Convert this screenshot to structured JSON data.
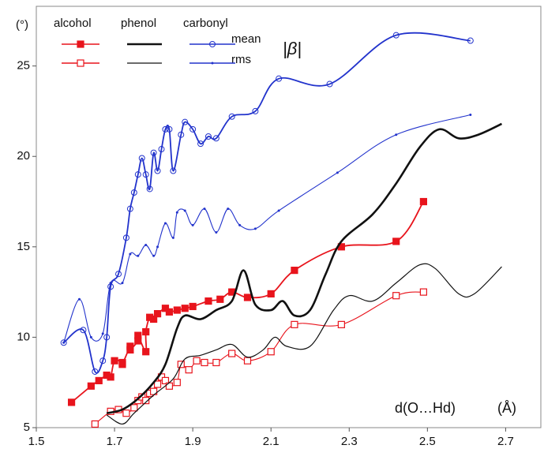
{
  "chart_data": {
    "type": "line",
    "y_label": "(°)",
    "x_label": "d(O…Hd)",
    "x_unit": "(Å)",
    "xlim": [
      1.5,
      2.79
    ],
    "ylim": [
      5,
      28.3
    ],
    "xticks": [
      1.5,
      1.7,
      1.9,
      2.1,
      2.3,
      2.5,
      2.7
    ],
    "yticks": [
      5,
      10,
      15,
      20,
      25
    ],
    "stats": [
      "mean",
      "rms"
    ],
    "stat_symbol": "|β|",
    "series": [
      {
        "name": "alcohol",
        "color": "#e8141c",
        "marker": "square",
        "mean": {
          "x": [
            1.59,
            1.64,
            1.66,
            1.68,
            1.69,
            1.7,
            1.72,
            1.72,
            1.74,
            1.74,
            1.76,
            1.76,
            1.78,
            1.78,
            1.79,
            1.8,
            1.81,
            1.83,
            1.84,
            1.86,
            1.88,
            1.9,
            1.94,
            1.97,
            2.0,
            2.04,
            2.1,
            2.16,
            2.28,
            2.42,
            2.49
          ],
          "values": [
            6.4,
            7.3,
            7.6,
            7.9,
            7.8,
            8.7,
            8.6,
            8.5,
            9.5,
            9.3,
            9.8,
            10.1,
            9.2,
            10.3,
            11.1,
            11.0,
            11.3,
            11.6,
            11.4,
            11.5,
            11.6,
            11.7,
            12.0,
            12.1,
            12.5,
            12.2,
            12.4,
            13.7,
            15.0,
            15.3,
            17.5
          ]
        },
        "rms": {
          "x": [
            1.65,
            1.69,
            1.71,
            1.73,
            1.75,
            1.76,
            1.77,
            1.78,
            1.79,
            1.8,
            1.81,
            1.82,
            1.83,
            1.84,
            1.86,
            1.87,
            1.89,
            1.91,
            1.93,
            1.96,
            2.0,
            2.04,
            2.1,
            2.16,
            2.28,
            2.42,
            2.49
          ],
          "values": [
            5.2,
            5.9,
            6.0,
            5.8,
            6.1,
            6.5,
            6.7,
            6.5,
            6.9,
            7.0,
            7.4,
            7.8,
            7.6,
            7.3,
            7.5,
            8.5,
            8.2,
            8.7,
            8.6,
            8.6,
            9.1,
            8.7,
            9.2,
            10.7,
            10.7,
            12.3,
            12.5
          ]
        }
      },
      {
        "name": "phenol",
        "color": "#111111",
        "marker": "none",
        "mean": {
          "x": [
            1.68,
            1.72,
            1.76,
            1.8,
            1.83,
            1.86,
            1.88,
            1.92,
            1.96,
            2.0,
            2.03,
            2.06,
            2.1,
            2.13,
            2.16,
            2.2,
            2.24,
            2.28,
            2.36,
            2.42,
            2.48,
            2.53,
            2.58,
            2.63,
            2.69
          ],
          "values": [
            5.8,
            6.0,
            6.6,
            7.5,
            8.5,
            10.5,
            11.2,
            11.0,
            11.5,
            12.0,
            13.7,
            11.8,
            11.5,
            12.0,
            11.2,
            11.5,
            13.5,
            15.3,
            16.8,
            18.5,
            20.5,
            21.5,
            21.0,
            21.2,
            21.8
          ]
        },
        "rms": {
          "x": [
            1.68,
            1.72,
            1.75,
            1.8,
            1.85,
            1.88,
            1.92,
            1.96,
            2.0,
            2.04,
            2.08,
            2.11,
            2.14,
            2.2,
            2.26,
            2.3,
            2.36,
            2.42,
            2.48,
            2.52,
            2.58,
            2.62,
            2.69
          ],
          "values": [
            5.7,
            5.2,
            5.8,
            6.8,
            7.7,
            8.8,
            9.0,
            9.3,
            9.6,
            8.9,
            9.3,
            10.0,
            9.5,
            9.5,
            11.5,
            12.3,
            12.0,
            13.0,
            14.0,
            13.8,
            12.4,
            12.4,
            13.9
          ]
        }
      },
      {
        "name": "carbonyl",
        "color": "#2233cc",
        "marker": "circle",
        "mean": {
          "x": [
            1.57,
            1.62,
            1.65,
            1.67,
            1.68,
            1.69,
            1.71,
            1.73,
            1.74,
            1.75,
            1.76,
            1.77,
            1.78,
            1.79,
            1.8,
            1.81,
            1.82,
            1.83,
            1.84,
            1.85,
            1.87,
            1.88,
            1.9,
            1.92,
            1.94,
            1.96,
            2.0,
            2.06,
            2.12,
            2.25,
            2.42,
            2.61
          ],
          "values": [
            9.7,
            10.4,
            8.1,
            8.7,
            10.0,
            12.8,
            13.5,
            15.5,
            17.1,
            18.0,
            19.0,
            19.9,
            19.0,
            18.2,
            20.2,
            19.2,
            20.4,
            21.5,
            21.5,
            19.2,
            21.2,
            21.9,
            21.5,
            20.7,
            21.1,
            21.0,
            22.2,
            22.5,
            24.3,
            24.0,
            26.7,
            26.4
          ]
        },
        "rms": {
          "x": [
            1.57,
            1.61,
            1.64,
            1.67,
            1.69,
            1.72,
            1.74,
            1.76,
            1.78,
            1.8,
            1.81,
            1.83,
            1.85,
            1.86,
            1.88,
            1.9,
            1.93,
            1.96,
            1.99,
            2.02,
            2.06,
            2.12,
            2.27,
            2.42,
            2.61
          ],
          "values": [
            9.7,
            12.1,
            10.0,
            10.2,
            13.0,
            13.0,
            14.6,
            14.5,
            15.1,
            14.5,
            15.0,
            16.3,
            15.5,
            16.9,
            17.0,
            16.2,
            17.1,
            15.8,
            17.1,
            16.2,
            16.0,
            17.0,
            19.1,
            21.2,
            22.3
          ]
        }
      }
    ]
  }
}
